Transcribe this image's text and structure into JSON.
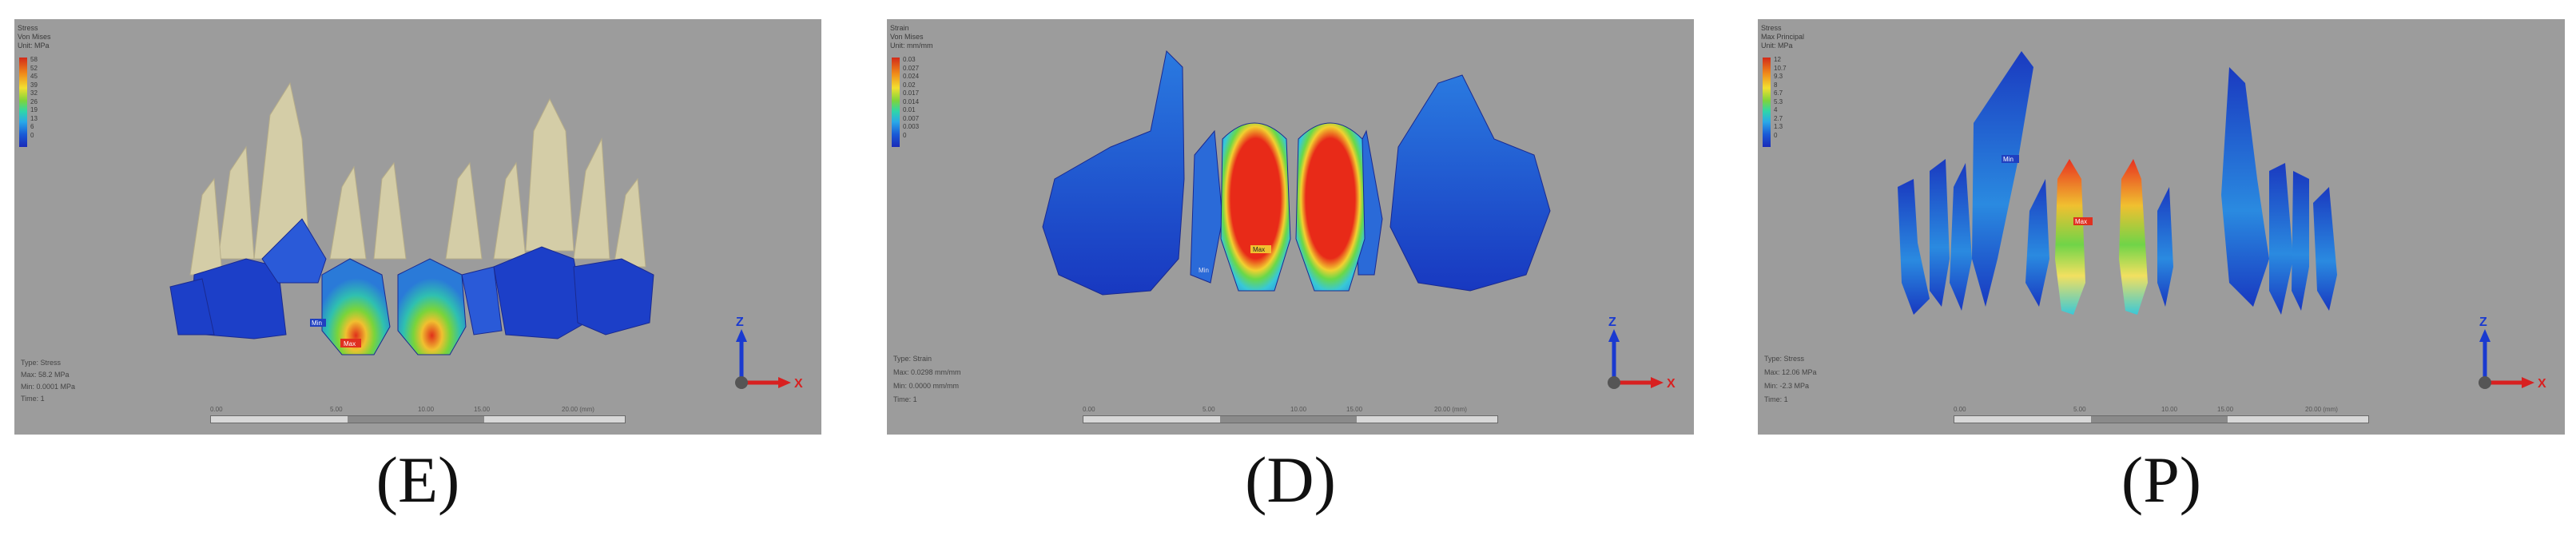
{
  "panels": [
    {
      "caption": "(E)",
      "legend_title": "Stress\nVon Mises\nUnit: MPa",
      "legend_ticks": [
        "58",
        "52",
        "45",
        "39",
        "32",
        "26",
        "19",
        "13",
        "6",
        "0"
      ],
      "info_lines": [
        "Type: Stress",
        "Max: 58.2 MPa",
        "Min: 0.0001 MPa",
        "Time: 1"
      ],
      "markers": [
        "Min",
        "Max"
      ],
      "scale_labels": [
        "0.00",
        "5.00",
        "10.00",
        "15.00",
        "20.00 (mm)"
      ],
      "axis": {
        "z": "Z",
        "x": "X"
      }
    },
    {
      "caption": "(D)",
      "legend_title": "Strain\nVon Mises\nUnit: mm/mm",
      "legend_ticks": [
        "0.03",
        "0.027",
        "0.024",
        "0.02",
        "0.017",
        "0.014",
        "0.01",
        "0.007",
        "0.003",
        "0"
      ],
      "info_lines": [
        "Type: Strain",
        "Max: 0.0298 mm/mm",
        "Min: 0.0000 mm/mm",
        "Time: 1"
      ],
      "markers": [
        "Max",
        "Min"
      ],
      "scale_labels": [
        "0.00",
        "5.00",
        "10.00",
        "15.00",
        "20.00 (mm)"
      ],
      "axis": {
        "z": "Z",
        "x": "X"
      }
    },
    {
      "caption": "(P)",
      "legend_title": "Stress\nMax Principal\nUnit: MPa",
      "legend_ticks": [
        "12",
        "10.7",
        "9.3",
        "8",
        "6.7",
        "5.3",
        "4",
        "2.7",
        "1.3",
        "0"
      ],
      "info_lines": [
        "Type: Stress",
        "Max: 12.06 MPa",
        "Min: -2.3 MPa",
        "Time: 1"
      ],
      "markers": [
        "Min",
        "Max"
      ],
      "scale_labels": [
        "0.00",
        "5.00",
        "10.00",
        "15.00",
        "20.00 (mm)"
      ],
      "axis": {
        "z": "Z",
        "x": "X"
      }
    }
  ]
}
